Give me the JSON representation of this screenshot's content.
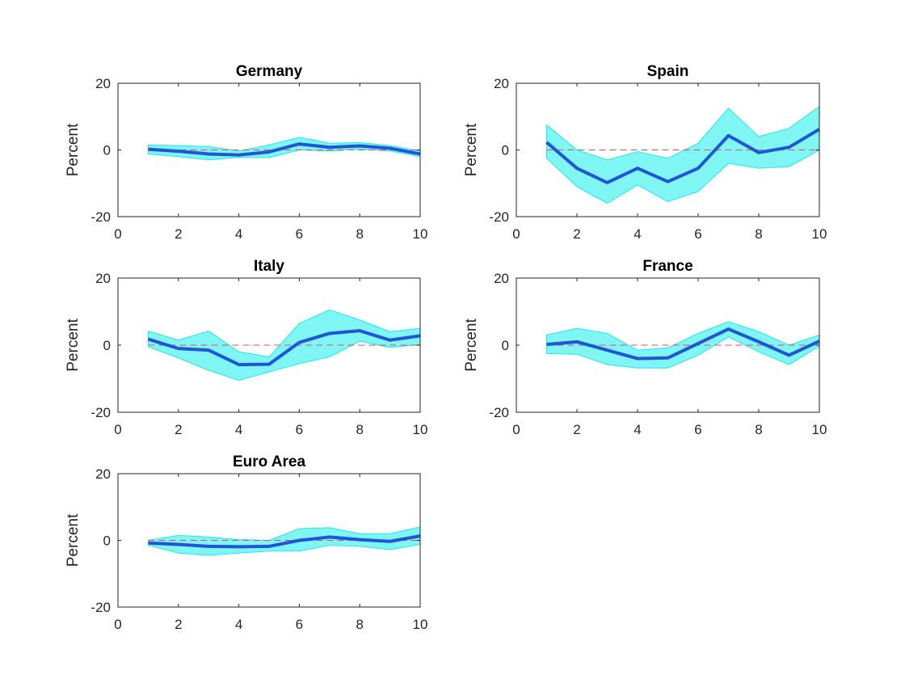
{
  "colors": {
    "band_fill": "#7ff6f4",
    "band_edge": "#1ee8ee",
    "median_line": "#1f56d6",
    "zero_line": "#e05050",
    "axis": "#262626"
  },
  "chart_data": [
    {
      "type": "area",
      "title": "Germany",
      "xlabel": "",
      "ylabel": "Percent",
      "xlim": [
        0,
        10
      ],
      "ylim": [
        -20,
        20
      ],
      "xticks": [
        0,
        2,
        4,
        6,
        8,
        10
      ],
      "yticks": [
        -20,
        0,
        20
      ],
      "x": [
        1,
        2,
        3,
        4,
        5,
        6,
        7,
        8,
        9,
        10
      ],
      "series": [
        {
          "role": "upper",
          "values": [
            1.5,
            1.3,
            1.0,
            -0.3,
            1.5,
            3.8,
            2.0,
            2.2,
            1.3,
            -0.3
          ]
        },
        {
          "role": "median",
          "values": [
            0.2,
            -0.4,
            -1.2,
            -1.5,
            -0.6,
            1.8,
            0.8,
            1.2,
            0.5,
            -1.2
          ]
        },
        {
          "role": "lower",
          "values": [
            -1.2,
            -2.0,
            -3.0,
            -2.2,
            -2.3,
            0.0,
            -0.3,
            0.2,
            -0.3,
            -2.0
          ]
        }
      ],
      "reference_line": 0
    },
    {
      "type": "area",
      "title": "Spain",
      "xlabel": "",
      "ylabel": "Percent",
      "xlim": [
        0,
        10
      ],
      "ylim": [
        -20,
        20
      ],
      "xticks": [
        0,
        2,
        4,
        6,
        8,
        10
      ],
      "yticks": [
        -20,
        0,
        20
      ],
      "x": [
        1,
        2,
        3,
        4,
        5,
        6,
        7,
        8,
        9,
        10
      ],
      "series": [
        {
          "role": "upper",
          "values": [
            7.5,
            0.0,
            -3.0,
            -0.5,
            -2.5,
            2.0,
            12.5,
            4.0,
            6.5,
            13.0
          ]
        },
        {
          "role": "median",
          "values": [
            2.3,
            -5.5,
            -9.8,
            -5.5,
            -9.5,
            -5.5,
            4.3,
            -0.8,
            0.8,
            6.2
          ]
        },
        {
          "role": "lower",
          "values": [
            -2.5,
            -11.0,
            -16.0,
            -10.5,
            -15.5,
            -12.5,
            -4.0,
            -5.5,
            -5.0,
            0.0
          ]
        }
      ],
      "reference_line": 0
    },
    {
      "type": "area",
      "title": "Italy",
      "xlabel": "",
      "ylabel": "Percent",
      "xlim": [
        0,
        10
      ],
      "ylim": [
        -20,
        20
      ],
      "xticks": [
        0,
        2,
        4,
        6,
        8,
        10
      ],
      "yticks": [
        -20,
        0,
        20
      ],
      "x": [
        1,
        2,
        3,
        4,
        5,
        6,
        7,
        8,
        9,
        10
      ],
      "series": [
        {
          "role": "upper",
          "values": [
            4.2,
            1.5,
            4.2,
            -2.0,
            -3.5,
            6.5,
            10.5,
            7.5,
            4.0,
            5.0
          ]
        },
        {
          "role": "median",
          "values": [
            1.8,
            -1.0,
            -1.5,
            -5.8,
            -5.7,
            0.8,
            3.5,
            4.3,
            1.5,
            2.8
          ]
        },
        {
          "role": "lower",
          "values": [
            -0.5,
            -3.8,
            -7.5,
            -10.5,
            -8.0,
            -5.5,
            -3.5,
            1.2,
            -0.7,
            0.2
          ]
        }
      ],
      "reference_line": 0
    },
    {
      "type": "area",
      "title": "France",
      "xlabel": "",
      "ylabel": "Percent",
      "xlim": [
        0,
        10
      ],
      "ylim": [
        -20,
        20
      ],
      "xticks": [
        0,
        2,
        4,
        6,
        8,
        10
      ],
      "yticks": [
        -20,
        0,
        20
      ],
      "x": [
        1,
        2,
        3,
        4,
        5,
        6,
        7,
        8,
        9,
        10
      ],
      "series": [
        {
          "role": "upper",
          "values": [
            3.0,
            5.0,
            3.5,
            -1.5,
            -0.8,
            3.5,
            7.0,
            4.0,
            0.0,
            3.0
          ]
        },
        {
          "role": "median",
          "values": [
            0.2,
            1.0,
            -1.5,
            -4.0,
            -3.8,
            0.5,
            4.8,
            1.0,
            -3.0,
            1.2
          ]
        },
        {
          "role": "lower",
          "values": [
            -2.5,
            -2.7,
            -5.8,
            -6.8,
            -6.8,
            -3.0,
            2.5,
            -2.0,
            -5.8,
            -0.3
          ]
        }
      ],
      "reference_line": 0
    },
    {
      "type": "area",
      "title": "Euro Area",
      "xlabel": "",
      "ylabel": "Percent",
      "xlim": [
        0,
        10
      ],
      "ylim": [
        -20,
        20
      ],
      "xticks": [
        0,
        2,
        4,
        6,
        8,
        10
      ],
      "yticks": [
        -20,
        0,
        20
      ],
      "x": [
        1,
        2,
        3,
        4,
        5,
        6,
        7,
        8,
        9,
        10
      ],
      "series": [
        {
          "role": "upper",
          "values": [
            0.0,
            1.5,
            1.0,
            0.2,
            0.0,
            3.5,
            3.8,
            2.0,
            2.0,
            4.0
          ]
        },
        {
          "role": "median",
          "values": [
            -0.8,
            -1.2,
            -1.8,
            -1.9,
            -1.8,
            0.0,
            1.0,
            0.2,
            -0.3,
            1.3
          ]
        },
        {
          "role": "lower",
          "values": [
            -1.5,
            -3.8,
            -4.5,
            -3.8,
            -3.2,
            -3.2,
            -1.5,
            -1.8,
            -2.8,
            -1.2
          ]
        }
      ],
      "reference_line": 0
    }
  ]
}
